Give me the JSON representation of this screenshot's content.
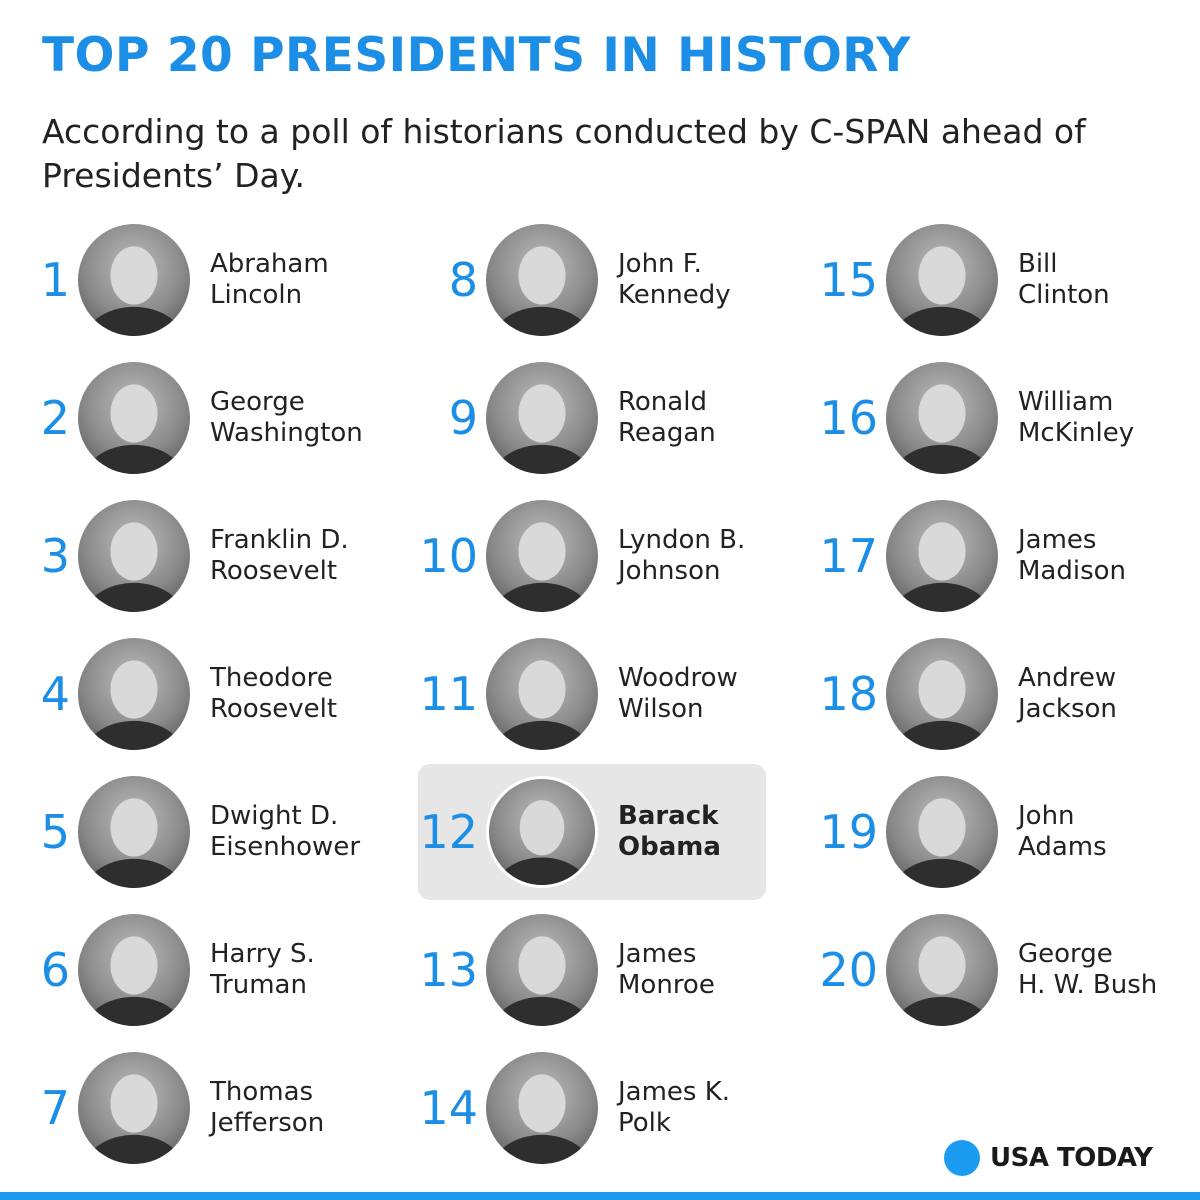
{
  "title": "TOP 20 PRESIDENTS IN HISTORY",
  "subtitle": "According to a poll of historians conducted by C-SPAN ahead of Presidents’ Day.",
  "colors": {
    "accent": "#1c8ee6",
    "highlight_bg": "#e6e6e6",
    "logo_dot": "#1c9cf0"
  },
  "presidents": [
    {
      "rank": "1",
      "first": "Abraham",
      "last": "Lincoln"
    },
    {
      "rank": "2",
      "first": "George",
      "last": "Washington"
    },
    {
      "rank": "3",
      "first": "Franklin D.",
      "last": "Roosevelt"
    },
    {
      "rank": "4",
      "first": "Theodore",
      "last": "Roosevelt"
    },
    {
      "rank": "5",
      "first": "Dwight D.",
      "last": "Eisenhower"
    },
    {
      "rank": "6",
      "first": "Harry S.",
      "last": "Truman"
    },
    {
      "rank": "7",
      "first": "Thomas",
      "last": "Jefferson"
    },
    {
      "rank": "8",
      "first": "John F.",
      "last": "Kennedy"
    },
    {
      "rank": "9",
      "first": "Ronald",
      "last": "Reagan"
    },
    {
      "rank": "10",
      "first": "Lyndon B.",
      "last": "Johnson"
    },
    {
      "rank": "11",
      "first": "Woodrow",
      "last": "Wilson"
    },
    {
      "rank": "12",
      "first": "Barack",
      "last": "Obama"
    },
    {
      "rank": "13",
      "first": "James",
      "last": "Monroe"
    },
    {
      "rank": "14",
      "first": "James K.",
      "last": "Polk"
    },
    {
      "rank": "15",
      "first": "Bill",
      "last": "Clinton"
    },
    {
      "rank": "16",
      "first": "William",
      "last": "McKinley"
    },
    {
      "rank": "17",
      "first": "James",
      "last": "Madison"
    },
    {
      "rank": "18",
      "first": "Andrew",
      "last": "Jackson"
    },
    {
      "rank": "19",
      "first": "John",
      "last": "Adams"
    },
    {
      "rank": "20",
      "first": "George",
      "last": "H. W. Bush"
    }
  ],
  "highlighted_rank": "12",
  "logo": {
    "text": "USA TODAY"
  }
}
